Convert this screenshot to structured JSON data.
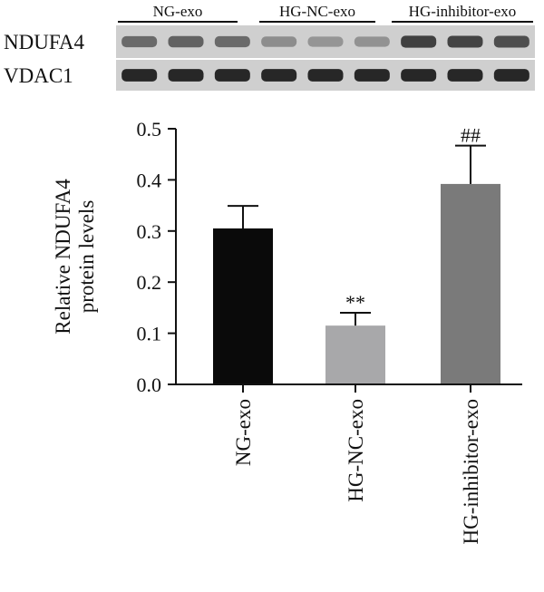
{
  "blot": {
    "groups": [
      {
        "label": "NG-exo"
      },
      {
        "label": "HG-NC-exo"
      },
      {
        "label": "HG-inhibitor-exo"
      }
    ],
    "rows": [
      {
        "label": "NDUFA4",
        "intensity": [
          0.55,
          0.6,
          0.55,
          0.35,
          0.3,
          0.32,
          0.8,
          0.78,
          0.72
        ]
      },
      {
        "label": "VDAC1",
        "intensity": [
          0.95,
          0.95,
          0.95,
          0.95,
          0.95,
          0.95,
          0.95,
          0.95,
          0.95
        ]
      }
    ]
  },
  "chart_data": {
    "type": "bar",
    "categories": [
      "NG-exo",
      "HG-NC-exo",
      "HG-inhibitor-exo"
    ],
    "values": [
      0.305,
      0.115,
      0.392
    ],
    "errors": [
      0.044,
      0.025,
      0.075
    ],
    "bar_colors": [
      "#0a0a0a",
      "#a8a8aa",
      "#7a7a7a"
    ],
    "significance": [
      "",
      "**",
      "##"
    ],
    "ylabel_line1": "Relative NDUFA4",
    "ylabel_line2": "protein levels",
    "ylim": [
      0,
      0.5
    ],
    "yticks": [
      {
        "value": 0,
        "label": "0.0"
      },
      {
        "value": 0.1,
        "label": "0.1"
      },
      {
        "value": 0.2,
        "label": "0.2"
      },
      {
        "value": 0.3,
        "label": "0.3"
      },
      {
        "value": 0.4,
        "label": "0.4"
      },
      {
        "value": 0.5,
        "label": "0.5"
      }
    ]
  }
}
